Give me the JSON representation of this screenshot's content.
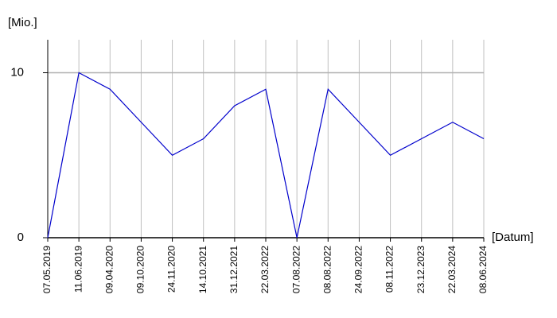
{
  "chart_data": {
    "type": "line",
    "y_label": "[Mio.]",
    "x_label": "[Datum]",
    "categories": [
      "07.05.2019",
      "11.06.2019",
      "09.04.2020",
      "09.10.2020",
      "24.11.2020",
      "14.10.2021",
      "31.12.2021",
      "22.03.2022",
      "07.08.2022",
      "08.08.2022",
      "24.09.2022",
      "08.11.2022",
      "23.12.2023",
      "22.03.2024",
      "08.06.2024"
    ],
    "series": [
      {
        "color": "#0000cc",
        "values": [
          0,
          10,
          9,
          7,
          5,
          6,
          8,
          9,
          0,
          9,
          7,
          5,
          6,
          7,
          6
        ]
      }
    ],
    "ylim": [
      0,
      12
    ],
    "yticks": [
      0,
      10
    ],
    "grid": true
  }
}
